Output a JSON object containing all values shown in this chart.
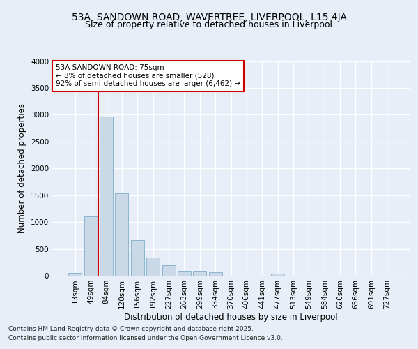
{
  "title1": "53A, SANDOWN ROAD, WAVERTREE, LIVERPOOL, L15 4JA",
  "title2": "Size of property relative to detached houses in Liverpool",
  "xlabel": "Distribution of detached houses by size in Liverpool",
  "ylabel": "Number of detached properties",
  "categories": [
    "13sqm",
    "49sqm",
    "84sqm",
    "120sqm",
    "156sqm",
    "192sqm",
    "227sqm",
    "263sqm",
    "299sqm",
    "334sqm",
    "370sqm",
    "406sqm",
    "441sqm",
    "477sqm",
    "513sqm",
    "549sqm",
    "584sqm",
    "620sqm",
    "656sqm",
    "691sqm",
    "727sqm"
  ],
  "values": [
    55,
    1110,
    2970,
    1530,
    660,
    340,
    200,
    95,
    90,
    65,
    5,
    5,
    5,
    35,
    5,
    5,
    5,
    5,
    5,
    5,
    5
  ],
  "bar_color": "#c9d9e8",
  "bar_edge_color": "#8ab4d0",
  "vline_x": 1.5,
  "vline_color": "#cc0000",
  "annotation_text": "53A SANDOWN ROAD: 75sqm\n← 8% of detached houses are smaller (528)\n92% of semi-detached houses are larger (6,462) →",
  "annotation_box_color": "#ffffff",
  "annotation_box_edge": "#cc0000",
  "ylim": [
    0,
    4000
  ],
  "yticks": [
    0,
    500,
    1000,
    1500,
    2000,
    2500,
    3000,
    3500,
    4000
  ],
  "footer1": "Contains HM Land Registry data © Crown copyright and database right 2025.",
  "footer2": "Contains public sector information licensed under the Open Government Licence v3.0.",
  "bg_color": "#e8eef8",
  "plot_bg_color": "#e8eef8",
  "grid_color": "#ffffff",
  "title_fontsize": 10,
  "subtitle_fontsize": 9,
  "label_fontsize": 8.5,
  "tick_fontsize": 7.5,
  "footer_fontsize": 6.5,
  "annot_fontsize": 7.5
}
